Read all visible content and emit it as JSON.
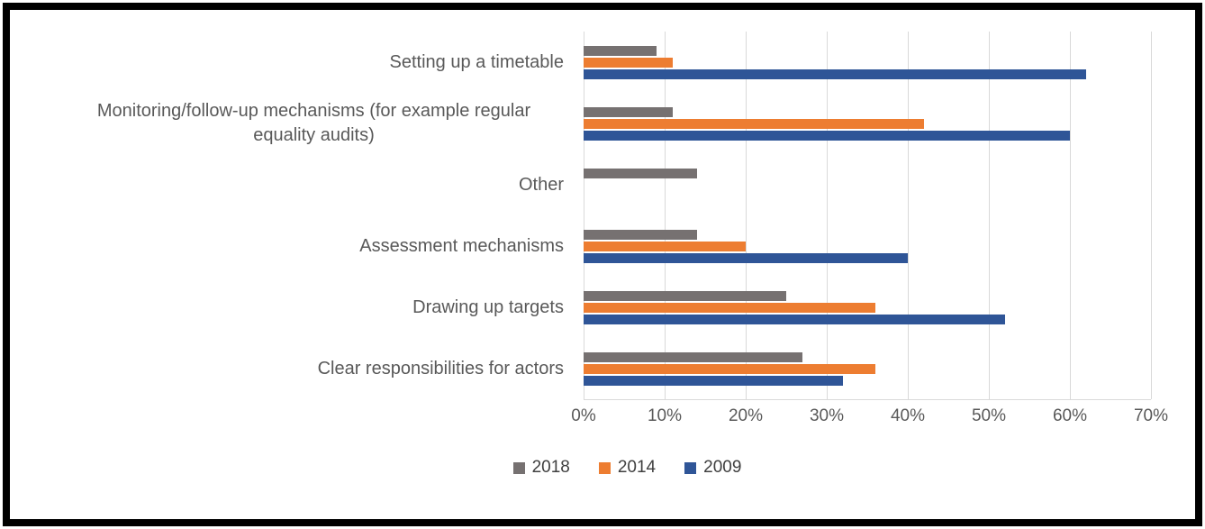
{
  "chart_data": {
    "type": "bar",
    "orientation": "horizontal",
    "title": "",
    "categories": [
      "Setting up a timetable",
      "Monitoring/follow-up mechanisms (for example regular equality audits)",
      "Other",
      "Assessment mechanisms",
      "Drawing up targets",
      "Clear responsibilities for actors"
    ],
    "series": [
      {
        "name": "2018",
        "color": "#767171",
        "values": [
          9,
          11,
          14,
          14,
          25,
          27
        ]
      },
      {
        "name": "2014",
        "color": "#ED7D31",
        "values": [
          11,
          42,
          0,
          20,
          36,
          36
        ]
      },
      {
        "name": "2009",
        "color": "#2F5597",
        "values": [
          62,
          60,
          0,
          40,
          52,
          32
        ]
      }
    ],
    "x_ticks": [
      "0%",
      "10%",
      "20%",
      "30%",
      "40%",
      "50%",
      "60%",
      "70%"
    ],
    "xlim": [
      0,
      70
    ],
    "xlabel": "",
    "ylabel": "",
    "grid": true,
    "legend_position": "bottom",
    "bar_order_top_to_bottom": [
      "2018",
      "2014",
      "2009"
    ]
  },
  "styles": {
    "background": "#FFFFFF",
    "frame_border_color": "#000000",
    "gridline_color": "#D9D9D9",
    "axis_line_color": "#D9D9D9",
    "tick_text_color": "#595959",
    "category_text_color": "#595959",
    "legend_text_color": "#404040"
  }
}
